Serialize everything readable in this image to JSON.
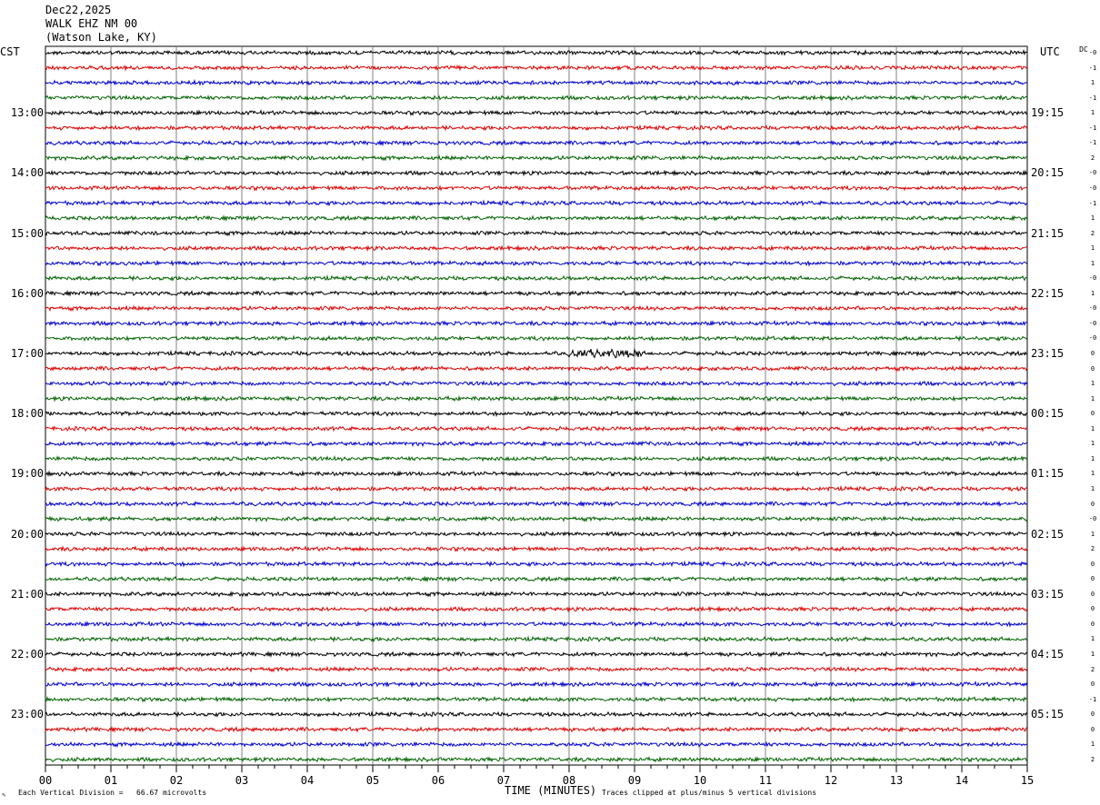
{
  "header": {
    "date": "Dec22,2025",
    "station": "WALK EHZ NM 00",
    "location": "(Watson Lake, KY)"
  },
  "left_axis_label": "CST",
  "right_axis_label": "UTC",
  "dc_label": "DC",
  "chart_data": {
    "type": "line",
    "description_type": "helicorder",
    "x_axis": {
      "label": "TIME (MINUTES)",
      "range": [
        0,
        15
      ],
      "tick_labels": [
        "00",
        "01",
        "02",
        "03",
        "04",
        "05",
        "06",
        "07",
        "08",
        "09",
        "10",
        "11",
        "12",
        "13",
        "14",
        "15"
      ]
    },
    "left_time_labels": [
      "13:00",
      "14:00",
      "15:00",
      "16:00",
      "17:00",
      "18:00",
      "19:00",
      "20:00",
      "21:00",
      "22:00",
      "23:00"
    ],
    "right_time_labels": [
      "19:15",
      "20:15",
      "21:15",
      "22:15",
      "23:15",
      "00:15",
      "01:15",
      "02:15",
      "03:15",
      "04:15",
      "05:15"
    ],
    "trace_count": 48,
    "trace_colors": [
      "#000000",
      "#e00000",
      "#0000d0",
      "#006400"
    ],
    "dc_offsets": [
      "-0",
      "-1",
      "1",
      "-1",
      "1",
      "-1",
      "-1",
      "2",
      "-0",
      "-0",
      "-1",
      "1",
      "2",
      "1",
      "1",
      "-0",
      "1",
      "-0",
      "-0",
      "-0",
      "0",
      "0",
      "1",
      "1",
      "0",
      "1",
      "1",
      "1",
      "1",
      "1",
      "0",
      "-0",
      "1",
      "2",
      "0",
      "0",
      "0",
      "0",
      "0",
      "1",
      "1",
      "2",
      "0",
      "-1",
      "0",
      "0",
      "1",
      "2"
    ],
    "event": {
      "trace_index": 20,
      "minute_start": 8.0,
      "minute_end": 9.1
    },
    "grid": true
  },
  "footer": {
    "scale_text": "Each Vertical Division =   66.67 microvolts",
    "clip_text": "Traces clipped at plus/minus 5 vertical divisions"
  }
}
